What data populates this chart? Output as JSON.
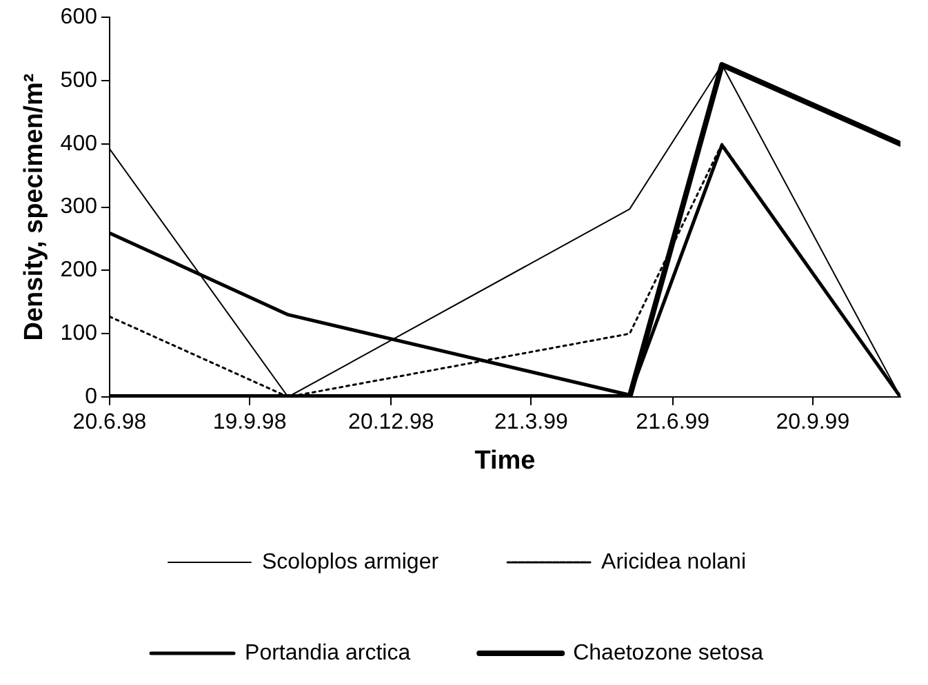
{
  "chart_data": {
    "type": "line",
    "xlabel": "Time",
    "ylabel": "Density, specimen/m²",
    "x": [
      "1998-06-20",
      "1998-10-14",
      "1999-05-24",
      "1999-07-23",
      "1999-11-16"
    ],
    "series": [
      {
        "name": "Scoloplos armiger",
        "color": "#000000",
        "values": [
          392,
          0,
          297,
          525,
          0
        ],
        "line_style": "solid"
      },
      {
        "name": "Aricidea nolani",
        "color": "#000000",
        "values": [
          127,
          0,
          100,
          400,
          0
        ],
        "line_style": "dotted"
      },
      {
        "name": "Portandia arctica",
        "color": "#000000",
        "values": [
          259,
          130,
          3,
          398,
          0
        ],
        "line_style": "solid"
      },
      {
        "name": "Chaetozone setosa",
        "color": "#000000",
        "values": [
          0,
          0,
          0,
          525,
          400
        ],
        "line_style": "solid"
      }
    ],
    "xlim": [
      "1998-06-20",
      "1999-11-16"
    ],
    "xticks": [
      {
        "value": "1998-06-20",
        "label": "20.6.98"
      },
      {
        "value": "1998-09-19",
        "label": "19.9.98"
      },
      {
        "value": "1998-12-20",
        "label": "20.12.98"
      },
      {
        "value": "1999-03-21",
        "label": "21.3.99"
      },
      {
        "value": "1999-06-21",
        "label": "21.6.99"
      },
      {
        "value": "1999-09-20",
        "label": "20.9.99"
      }
    ],
    "ylim": [
      0,
      600
    ],
    "yticks": [
      0,
      100,
      200,
      300,
      400,
      500,
      600
    ],
    "grid": false,
    "legend": "bottom",
    "marker": "none"
  }
}
